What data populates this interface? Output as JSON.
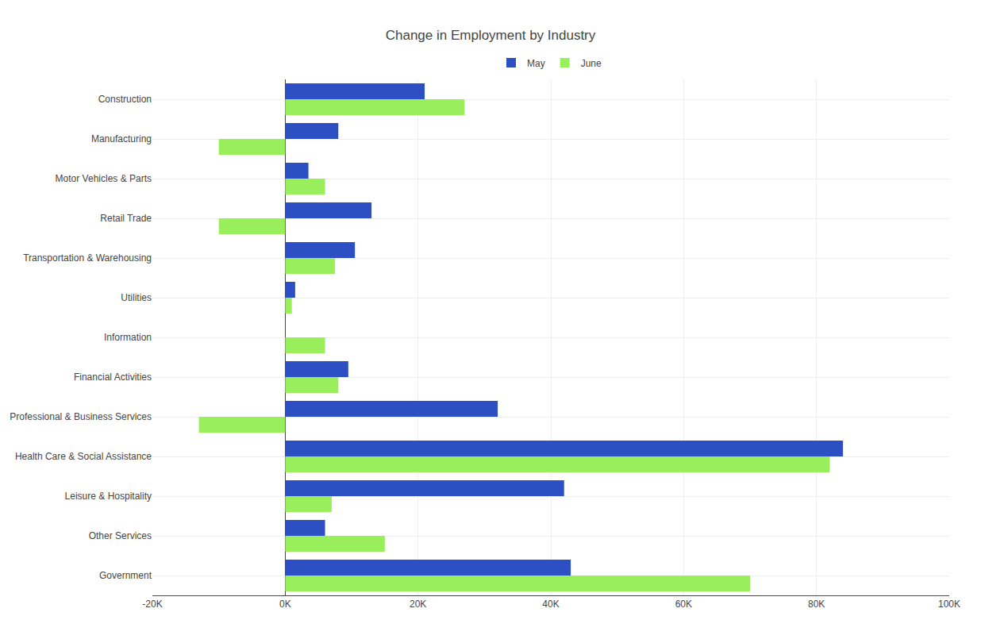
{
  "chart_data": {
    "type": "bar",
    "orientation": "horizontal",
    "title": "Change in Employment by Industry",
    "categories": [
      "Construction",
      "Manufacturing",
      "Motor Vehicles & Parts",
      "Retail Trade",
      "Transportation & Warehousing",
      "Utilities",
      "Information",
      "Financial Activities",
      "Professional & Business Services",
      "Health Care & Social Assistance",
      "Leisure & Hospitality",
      "Other Services",
      "Government"
    ],
    "series": [
      {
        "name": "May",
        "color": "#2c4fc3",
        "values": [
          21000,
          8000,
          3500,
          13000,
          10500,
          1500,
          0,
          9500,
          32000,
          84000,
          42000,
          6000,
          43000
        ]
      },
      {
        "name": "June",
        "color": "#99ef5b",
        "values": [
          27000,
          -10000,
          6000,
          -10000,
          7500,
          1000,
          6000,
          8000,
          -13000,
          82000,
          7000,
          15000,
          70000
        ]
      }
    ],
    "xlim": [
      -20000,
      100000
    ],
    "xticks": [
      {
        "value": -20000,
        "label": "-20K"
      },
      {
        "value": 0,
        "label": "0K"
      },
      {
        "value": 20000,
        "label": "20K"
      },
      {
        "value": 40000,
        "label": "40K"
      },
      {
        "value": 60000,
        "label": "60K"
      },
      {
        "value": 80000,
        "label": "80K"
      },
      {
        "value": 100000,
        "label": "100K"
      }
    ],
    "grid": true,
    "legend": "top"
  }
}
